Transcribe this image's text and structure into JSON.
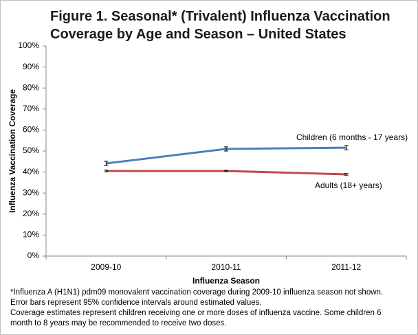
{
  "chart_data": {
    "type": "line",
    "title": "Figure 1. Seasonal* (Trivalent) Influenza Vaccination Coverage by Age and Season – United States",
    "x_label": "Influenza Season",
    "y_label": "Influenza Vaccination Coverage",
    "categories": [
      "2009-10",
      "2010-11",
      "2011-12"
    ],
    "series": [
      {
        "name": "Children (6 months - 17 years)",
        "color": "#4a7ebb",
        "values": [
          44.1,
          51.0,
          51.6
        ],
        "errors": [
          1.0,
          1.0,
          1.0
        ]
      },
      {
        "name": "Adults (18+ years)",
        "color": "#be4b48",
        "values": [
          40.5,
          40.5,
          38.9
        ],
        "errors": [
          0.4,
          0.3,
          0.4
        ]
      }
    ],
    "ylim": [
      0,
      100
    ],
    "yticks": [
      {
        "value": 0,
        "label": "0%"
      },
      {
        "value": 10,
        "label": "10%"
      },
      {
        "value": 20,
        "label": "20%"
      },
      {
        "value": 30,
        "label": "30%"
      },
      {
        "value": 40,
        "label": "40%"
      },
      {
        "value": 50,
        "label": "50%"
      },
      {
        "value": 60,
        "label": "60%"
      },
      {
        "value": 70,
        "label": "70%"
      },
      {
        "value": 80,
        "label": "80%"
      },
      {
        "value": 90,
        "label": "90%"
      },
      {
        "value": 100,
        "label": "100%"
      }
    ],
    "grid": false,
    "notes": [
      "*Influenza A (H1N1) pdm09 monovalent vaccination coverage during 2009-10 influenza season not shown.",
      "Error bars represent 95% confidence intervals around estimated values.",
      "Coverage estimates represent children receiving one or more doses of influenza vaccine. Some children 6 month to 8 years may be recommended to receive two doses."
    ]
  }
}
